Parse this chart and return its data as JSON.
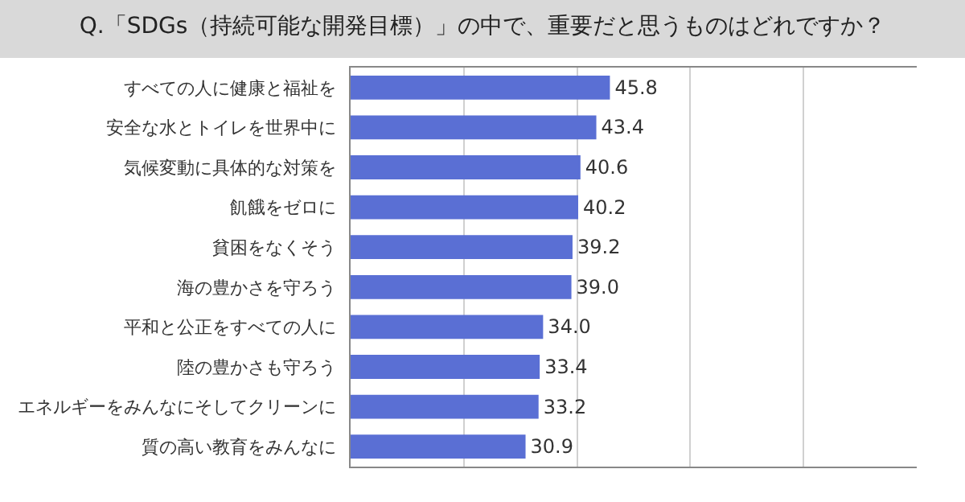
{
  "chart_data": {
    "type": "bar",
    "orientation": "horizontal",
    "title": "Q.「SDGs（持続可能な開発目標）」の中で、重要だと思うものはどれですか？",
    "categories": [
      "すべての人に健康と福祉を",
      "安全な水とトイレを世界中に",
      "気候変動に具体的な対策を",
      "飢餓をゼロに",
      "貧困をなくそう",
      "海の豊かさを守ろう",
      "平和と公正をすべての人に",
      "陸の豊かさも守ろう",
      "エネルギーをみんなにそしてクリーンに",
      "質の高い教育をみんなに"
    ],
    "values": [
      45.8,
      43.4,
      40.6,
      40.2,
      39.2,
      39.0,
      34.0,
      33.4,
      33.2,
      30.9
    ],
    "value_labels": [
      "45.8",
      "43.4",
      "40.6",
      "40.2",
      "39.2",
      "39.0",
      "34.0",
      "33.4",
      "33.2",
      "30.9"
    ],
    "color": "#5a6fd4",
    "xlim": [
      0,
      100
    ],
    "xticks": [
      {
        "value": 0,
        "label": null
      },
      {
        "value": 20,
        "label": null
      },
      {
        "value": 40,
        "label": null
      },
      {
        "value": 60,
        "label": null
      },
      {
        "value": 80,
        "label": null
      }
    ],
    "grid": "x",
    "tick_labels": "y"
  }
}
